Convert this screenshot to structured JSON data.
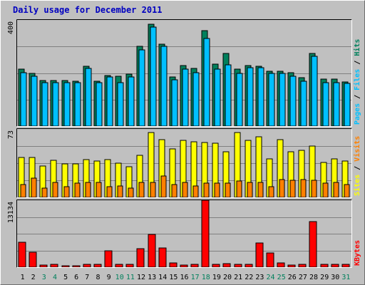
{
  "title": "Daily usage for December 2011",
  "colors": {
    "hits": "#00805C",
    "files": "#00C0FF",
    "pages": "#00C0FF",
    "visits": "#FF8000",
    "sites": "#FFFF00",
    "kbytes": "#FF0000",
    "weekday": "#000000",
    "weekend": "#00805C",
    "title": "#0000C0"
  },
  "chart_data": [
    {
      "type": "bar",
      "panel": "top",
      "categories": [
        "1",
        "2",
        "3",
        "4",
        "5",
        "6",
        "7",
        "8",
        "9",
        "10",
        "11",
        "12",
        "13",
        "14",
        "15",
        "16",
        "17",
        "18",
        "19",
        "20",
        "21",
        "22",
        "23",
        "24",
        "25",
        "26",
        "27",
        "28",
        "29",
        "30",
        "31"
      ],
      "y_tick_label": "400",
      "ylim": [
        0,
        420
      ],
      "series": [
        {
          "name": "Hits",
          "color_key": "hits",
          "values": [
            225,
            208,
            180,
            180,
            180,
            178,
            238,
            178,
            200,
            198,
            205,
            315,
            402,
            323,
            195,
            240,
            228,
            378,
            245,
            288,
            225,
            240,
            238,
            218,
            218,
            210,
            192,
            288,
            185,
            185,
            175
          ]
        },
        {
          "name": "Files",
          "color_key": "files",
          "values": [
            212,
            198,
            172,
            172,
            172,
            172,
            228,
            172,
            195,
            172,
            195,
            302,
            392,
            315,
            182,
            225,
            212,
            348,
            225,
            242,
            208,
            232,
            230,
            208,
            208,
            198,
            178,
            276,
            172,
            172,
            170
          ]
        },
        {
          "name": "Pages",
          "color_key": "pages",
          "values": [
            0,
            0,
            0,
            0,
            0,
            0,
            0,
            0,
            0,
            0,
            0,
            0,
            0,
            0,
            0,
            0,
            0,
            0,
            0,
            0,
            0,
            0,
            0,
            0,
            0,
            0,
            0,
            0,
            0,
            0,
            0
          ]
        }
      ],
      "right_label": [
        "Pages",
        "Files",
        "Hits"
      ]
    },
    {
      "type": "bar",
      "panel": "middle",
      "categories": [
        "1",
        "2",
        "3",
        "4",
        "5",
        "6",
        "7",
        "8",
        "9",
        "10",
        "11",
        "12",
        "13",
        "14",
        "15",
        "16",
        "17",
        "18",
        "19",
        "20",
        "21",
        "22",
        "23",
        "24",
        "25",
        "26",
        "27",
        "28",
        "29",
        "30",
        "31"
      ],
      "y_tick_label": "73",
      "ylim": [
        0,
        76
      ],
      "series": [
        {
          "name": "Sites",
          "color_key": "sites",
          "values": [
            44,
            44,
            35,
            41,
            37,
            37,
            42,
            40,
            42,
            38,
            34,
            47,
            72,
            64,
            54,
            63,
            62,
            61,
            60,
            51,
            72,
            63,
            67,
            43,
            64,
            51,
            52,
            57,
            39,
            43,
            40
          ]
        },
        {
          "name": "Visits",
          "color_key": "visits",
          "values": [
            14,
            21,
            10,
            17,
            12,
            16,
            17,
            17,
            12,
            13,
            10,
            17,
            17,
            24,
            14,
            17,
            13,
            16,
            16,
            16,
            18,
            17,
            17,
            12,
            20,
            19,
            20,
            19,
            16,
            17,
            14
          ]
        }
      ],
      "right_label": [
        "Sites",
        "Visits"
      ]
    },
    {
      "type": "bar",
      "panel": "bottom",
      "categories": [
        "1",
        "2",
        "3",
        "4",
        "5",
        "6",
        "7",
        "8",
        "9",
        "10",
        "11",
        "12",
        "13",
        "14",
        "15",
        "16",
        "17",
        "18",
        "19",
        "20",
        "21",
        "22",
        "23",
        "24",
        "25",
        "26",
        "27",
        "28",
        "29",
        "30",
        "31"
      ],
      "y_tick_label": "13134",
      "ylim": [
        0,
        13134
      ],
      "series": [
        {
          "name": "KBytes",
          "color_key": "kbytes",
          "values": [
            4900,
            3000,
            400,
            500,
            300,
            300,
            600,
            500,
            3200,
            500,
            600,
            3700,
            6400,
            3800,
            800,
            400,
            500,
            13134,
            500,
            700,
            500,
            500,
            4700,
            2800,
            800,
            400,
            600,
            8900,
            600,
            600,
            500
          ]
        }
      ],
      "right_label": [
        "KBytes"
      ]
    }
  ],
  "weekend_days": [
    3,
    4,
    10,
    11,
    17,
    18,
    24,
    25,
    31
  ]
}
